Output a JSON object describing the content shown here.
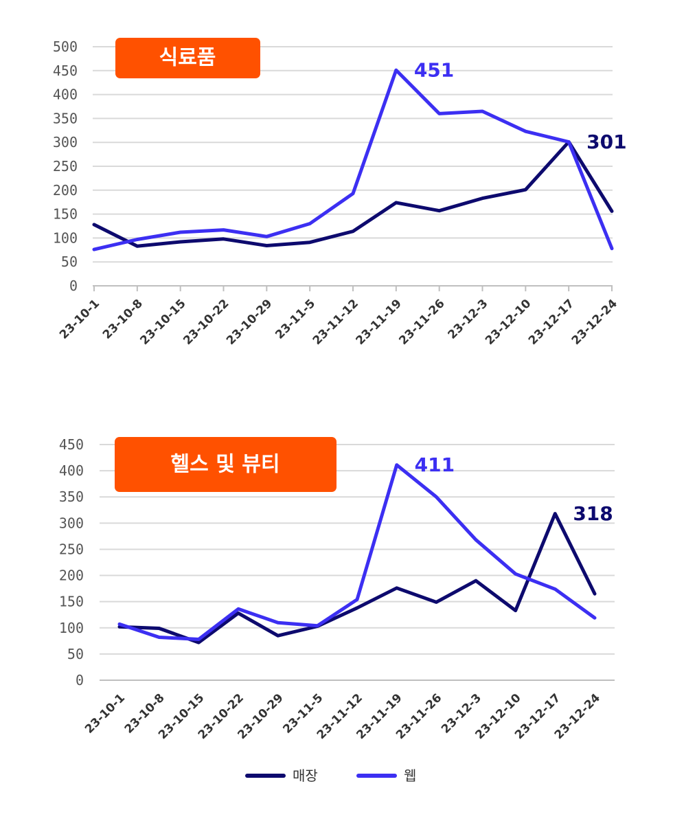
{
  "colors": {
    "store": "#0d0a6e",
    "web": "#3c2ff2",
    "badge": "#ff5100",
    "grid": "#d9d9d9",
    "axis": "#bfbfbf"
  },
  "legend": [
    {
      "label": "매장",
      "series": "store"
    },
    {
      "label": "웹",
      "series": "web"
    }
  ],
  "chart_data": [
    {
      "type": "line",
      "title": "식료품",
      "categories": [
        "23-10-1",
        "23-10-8",
        "23-10-15",
        "23-10-22",
        "23-10-29",
        "23-11-5",
        "23-11-12",
        "23-11-19",
        "23-11-26",
        "23-12-3",
        "23-12-10",
        "23-12-17",
        "23-12-24"
      ],
      "y_ticks": [
        "0",
        "50",
        "100",
        "150",
        "200",
        "250",
        "300",
        "350",
        "400",
        "450",
        "500"
      ],
      "ylim": [
        0,
        500
      ],
      "grid": true,
      "series": [
        {
          "name": "매장",
          "key": "store",
          "values": [
            128,
            83,
            92,
            98,
            84,
            91,
            114,
            174,
            157,
            183,
            201,
            301,
            156
          ]
        },
        {
          "name": "웹",
          "key": "web",
          "values": [
            76,
            97,
            112,
            117,
            103,
            130,
            193,
            451,
            360,
            365,
            323,
            301,
            78
          ]
        }
      ],
      "annotations": [
        {
          "text": "451",
          "series": "web",
          "index": 7
        },
        {
          "text": "301",
          "series": "store",
          "index": 11
        }
      ]
    },
    {
      "type": "line",
      "title": "헬스 및 뷰티",
      "categories": [
        "23-10-1",
        "23-10-8",
        "23-10-15",
        "23-10-22",
        "23-10-29",
        "23-11-5",
        "23-11-12",
        "23-11-19",
        "23-11-26",
        "23-12-3",
        "23-12-10",
        "23-12-17",
        "23-12-24"
      ],
      "y_ticks": [
        "0",
        "50",
        "100",
        "150",
        "200",
        "250",
        "300",
        "350",
        "400",
        "450"
      ],
      "ylim": [
        0,
        450
      ],
      "grid": true,
      "series": [
        {
          "name": "매장",
          "key": "store",
          "values": [
            102,
            99,
            72,
            128,
            85,
            103,
            138,
            176,
            149,
            190,
            133,
            318,
            165
          ]
        },
        {
          "name": "웹",
          "key": "web",
          "values": [
            107,
            82,
            78,
            136,
            110,
            104,
            154,
            411,
            350,
            268,
            203,
            174,
            119
          ]
        }
      ],
      "annotations": [
        {
          "text": "411",
          "series": "web",
          "index": 7
        },
        {
          "text": "318",
          "series": "store",
          "index": 11
        }
      ]
    }
  ]
}
